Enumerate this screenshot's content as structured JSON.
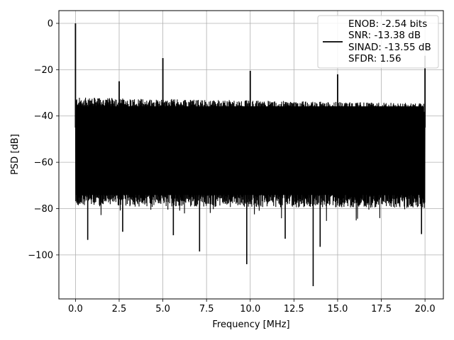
{
  "chart_data": {
    "type": "line",
    "title": "",
    "xlabel": "Frequency [MHz]",
    "ylabel": "PSD [dB]",
    "xlim": [
      -0.95,
      21.05
    ],
    "ylim": [
      -119,
      5.5
    ],
    "xticks": [
      0.0,
      2.5,
      5.0,
      7.5,
      10.0,
      12.5,
      15.0,
      17.5,
      20.0
    ],
    "xtick_labels": [
      "0.0",
      "2.5",
      "5.0",
      "7.5",
      "10.0",
      "12.5",
      "15.0",
      "17.5",
      "20.0"
    ],
    "yticks": [
      0,
      -20,
      -40,
      -60,
      -80,
      -100
    ],
    "ytick_labels": [
      "0",
      "−20",
      "−40",
      "−60",
      "−80",
      "−100"
    ],
    "grid": true,
    "legend_position": "top-right",
    "series": [
      {
        "legend_lines": [
          "ENOB: -2.54 bits",
          "SNR: -13.38 dB",
          "SINAD: -13.55 dB",
          "SFDR: 1.56"
        ],
        "color": "#000000",
        "noise_floor_db": {
          "upper": -35,
          "lower": -75
        },
        "spurs": [
          {
            "x": 0.0,
            "y": 0.0
          },
          {
            "x": 2.5,
            "y": -25
          },
          {
            "x": 5.0,
            "y": -15
          },
          {
            "x": 10.0,
            "y": -20.5
          },
          {
            "x": 15.0,
            "y": -22
          },
          {
            "x": 20.0,
            "y": -14
          }
        ],
        "dips": [
          {
            "x": 0.7,
            "y": -93.5
          },
          {
            "x": 2.7,
            "y": -90
          },
          {
            "x": 5.6,
            "y": -91.5
          },
          {
            "x": 7.1,
            "y": -98.5
          },
          {
            "x": 9.8,
            "y": -104
          },
          {
            "x": 12.0,
            "y": -93
          },
          {
            "x": 13.6,
            "y": -113.5
          },
          {
            "x": 14.0,
            "y": -96.5
          },
          {
            "x": 19.8,
            "y": -91
          }
        ]
      }
    ]
  }
}
